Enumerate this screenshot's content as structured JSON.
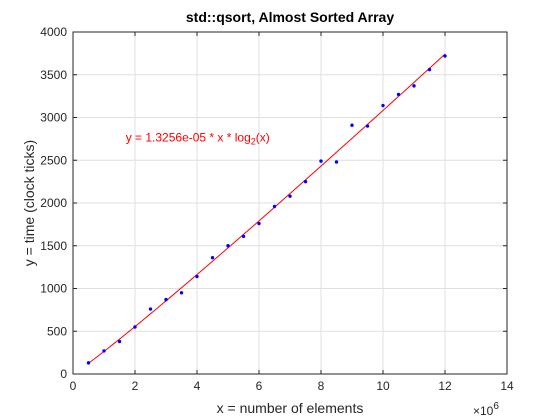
{
  "chart_data": {
    "type": "scatter",
    "title": "std::qsort, Almost Sorted Array",
    "xlabel": "x = number of elements",
    "ylabel": "y = time (clock ticks)",
    "x_multiplier_base": "×10",
    "x_multiplier_exp": "6",
    "xlim": [
      0,
      14
    ],
    "ylim": [
      0,
      4000
    ],
    "xticks": [
      0,
      2,
      4,
      6,
      8,
      10,
      12,
      14
    ],
    "yticks": [
      0,
      500,
      1000,
      1500,
      2000,
      2500,
      3000,
      3500,
      4000
    ],
    "grid": true,
    "series": [
      {
        "kind": "points",
        "color": "#0000ff",
        "x": [
          0.5,
          1.0,
          1.5,
          2.0,
          2.5,
          3.0,
          3.5,
          4.0,
          4.5,
          5.0,
          5.5,
          6.0,
          6.5,
          7.0,
          7.5,
          8.0,
          8.5,
          9.0,
          9.5,
          10.0,
          10.5,
          11.0,
          11.5,
          12.0
        ],
        "y": [
          130,
          270,
          380,
          550,
          760,
          870,
          950,
          1140,
          1360,
          1500,
          1610,
          1760,
          1960,
          2080,
          2250,
          2490,
          2480,
          2910,
          2900,
          3140,
          3270,
          3370,
          3560,
          3720
        ]
      },
      {
        "kind": "fit-line",
        "color": "#ff0000",
        "coefficient": 1.3256e-05,
        "x_scale": 1000000,
        "x_range": [
          0.5,
          12.0
        ]
      }
    ],
    "annotations": [
      {
        "prefix": "y = 1.3256e-05 * x * log",
        "subscript": "2",
        "suffix": "(x)",
        "color": "#ff0000",
        "x": 1.7,
        "y": 2720
      }
    ]
  }
}
